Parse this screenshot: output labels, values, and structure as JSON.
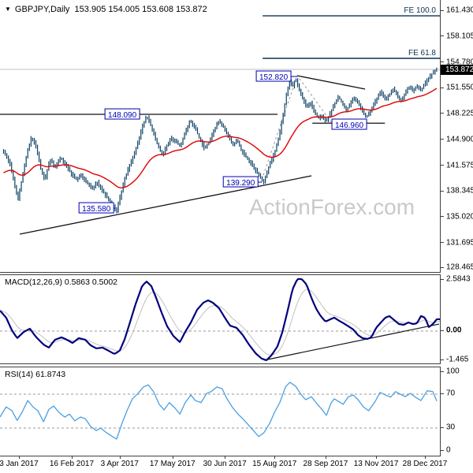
{
  "title": {
    "caret": "▼",
    "symbol_period": "GBPJPY,Daily",
    "ohlc_text": "153.905 154.005 153.608 153.872"
  },
  "watermark": "ActionForex.com",
  "colors": {
    "bar": "#0b3f63",
    "ma": "#e00000",
    "macd_line": "#00007f",
    "signal_line": "#c0c0c0",
    "rsi_line": "#4a9fe3",
    "level_box": "#0000b0",
    "fe_text": "#0f3050",
    "trendline": "#111111",
    "dashed": "#999999",
    "price_line": "#c0c0c0",
    "tag_bg": "#000000",
    "tag_text": "#ffffff",
    "axis_text": "#000000",
    "watermark": "#c9c9cb"
  },
  "chart_data": [
    {
      "id": "price",
      "type": "bar",
      "title": "GBPJPY,Daily",
      "current_ohlc": {
        "open": 153.905,
        "high": 154.005,
        "low": 153.608,
        "close": 153.872
      },
      "price_tag": "153.872",
      "price_tag_value": 153.872,
      "y_axis": {
        "labels": [
          "161.430",
          "158.105",
          "154.780",
          "151.550",
          "148.225",
          "144.900",
          "141.575",
          "138.345",
          "135.020",
          "131.695",
          "128.465"
        ],
        "top_value": 161.43,
        "bottom_value": 128.465
      },
      "x_axis": {
        "labels": [
          "3 Jan 2017",
          "16 Feb 2017",
          "3 Apr 2017",
          "17 May 2017",
          "30 Jun 2017",
          "15 Aug 2017",
          "28 Sep 2017",
          "13 Nov 2017",
          "28 Dec 2017"
        ],
        "positions": [
          0.043,
          0.163,
          0.272,
          0.392,
          0.511,
          0.624,
          0.74,
          0.855,
          0.966
        ]
      },
      "price_keypoints": [
        [
          0.009,
          143.39
        ],
        [
          0.022,
          141.88
        ],
        [
          0.032,
          139.36
        ],
        [
          0.041,
          137.34
        ],
        [
          0.05,
          139.86
        ],
        [
          0.061,
          143.08
        ],
        [
          0.072,
          145.3
        ],
        [
          0.082,
          143.99
        ],
        [
          0.093,
          141.07
        ],
        [
          0.102,
          139.76
        ],
        [
          0.113,
          142.38
        ],
        [
          0.125,
          141.37
        ],
        [
          0.138,
          142.58
        ],
        [
          0.151,
          141.57
        ],
        [
          0.161,
          140.56
        ],
        [
          0.174,
          139.76
        ],
        [
          0.185,
          140.36
        ],
        [
          0.197,
          139.35
        ],
        [
          0.21,
          138.55
        ],
        [
          0.22,
          139.56
        ],
        [
          0.233,
          138.25
        ],
        [
          0.246,
          137.34
        ],
        [
          0.256,
          136.53
        ],
        [
          0.265,
          135.7
        ],
        [
          0.274,
          137.84
        ],
        [
          0.283,
          139.76
        ],
        [
          0.294,
          141.57
        ],
        [
          0.305,
          142.98
        ],
        [
          0.315,
          144.79
        ],
        [
          0.324,
          146.61
        ],
        [
          0.333,
          147.95
        ],
        [
          0.342,
          146.81
        ],
        [
          0.351,
          145.4
        ],
        [
          0.36,
          143.99
        ],
        [
          0.369,
          142.88
        ],
        [
          0.378,
          143.99
        ],
        [
          0.389,
          145.1
        ],
        [
          0.4,
          144.59
        ],
        [
          0.41,
          143.99
        ],
        [
          0.421,
          145.8
        ],
        [
          0.432,
          147.32
        ],
        [
          0.443,
          146.41
        ],
        [
          0.453,
          145.1
        ],
        [
          0.464,
          143.79
        ],
        [
          0.475,
          144.49
        ],
        [
          0.486,
          146.01
        ],
        [
          0.496,
          147.22
        ],
        [
          0.507,
          146.61
        ],
        [
          0.518,
          145.4
        ],
        [
          0.529,
          144.19
        ],
        [
          0.539,
          144.79
        ],
        [
          0.55,
          143.38
        ],
        [
          0.561,
          142.58
        ],
        [
          0.572,
          141.77
        ],
        [
          0.582,
          140.86
        ],
        [
          0.593,
          139.96
        ],
        [
          0.6,
          139.5
        ],
        [
          0.609,
          141.07
        ],
        [
          0.618,
          142.38
        ],
        [
          0.627,
          143.79
        ],
        [
          0.636,
          145.8
        ],
        [
          0.643,
          147.82
        ],
        [
          0.651,
          150.64
        ],
        [
          0.658,
          152.36
        ],
        [
          0.665,
          151.65
        ],
        [
          0.672,
          152.7
        ],
        [
          0.679,
          151.45
        ],
        [
          0.688,
          150.24
        ],
        [
          0.697,
          149.03
        ],
        [
          0.706,
          149.63
        ],
        [
          0.715,
          148.42
        ],
        [
          0.724,
          147.62
        ],
        [
          0.733,
          147.92
        ],
        [
          0.742,
          147.2
        ],
        [
          0.751,
          148.32
        ],
        [
          0.76,
          149.43
        ],
        [
          0.769,
          150.34
        ],
        [
          0.778,
          149.63
        ],
        [
          0.787,
          148.62
        ],
        [
          0.796,
          149.43
        ],
        [
          0.805,
          150.24
        ],
        [
          0.814,
          149.53
        ],
        [
          0.823,
          148.62
        ],
        [
          0.832,
          147.72
        ],
        [
          0.841,
          148.32
        ],
        [
          0.85,
          149.43
        ],
        [
          0.858,
          150.34
        ],
        [
          0.867,
          151.05
        ],
        [
          0.876,
          150.04
        ],
        [
          0.885,
          150.64
        ],
        [
          0.894,
          151.35
        ],
        [
          0.903,
          150.54
        ],
        [
          0.912,
          149.83
        ],
        [
          0.921,
          150.84
        ],
        [
          0.93,
          151.65
        ],
        [
          0.939,
          151.05
        ],
        [
          0.948,
          151.75
        ],
        [
          0.957,
          151.15
        ],
        [
          0.966,
          152.06
        ],
        [
          0.975,
          152.76
        ],
        [
          0.984,
          153.47
        ],
        [
          0.991,
          153.87
        ]
      ],
      "levels": [
        {
          "label": "152.820",
          "t": 0.622,
          "price": 152.96,
          "tail_t": 0.676
        },
        {
          "label": "148.090",
          "t": 0.278,
          "price": 148.12
        },
        {
          "label": "146.960",
          "t": 0.794,
          "price": 146.81
        },
        {
          "label": "139.290",
          "t": 0.547,
          "price": 139.45,
          "tail_t": 0.595
        },
        {
          "label": "135.580",
          "t": 0.219,
          "price": 136.12,
          "tail_t": 0.262
        }
      ],
      "horizontal_lines": [
        {
          "price": 148.12,
          "t1": 0.0,
          "t2": 0.631
        },
        {
          "price": 146.99,
          "t1": 0.71,
          "t2": 0.875
        }
      ],
      "fe_levels": [
        {
          "label": "FE 100.0",
          "price": 160.72,
          "start_t": 0.597
        },
        {
          "label": "FE 61.8",
          "price": 155.28,
          "start_t": 0.597
        }
      ],
      "trendlines": [
        {
          "t1": 0.045,
          "p1": 132.8,
          "t2": 0.708,
          "p2": 140.26
        },
        {
          "t1": 0.676,
          "p1": 153.06,
          "t2": 0.83,
          "p2": 151.35
        }
      ],
      "dashed_path": [
        [
          0.595,
          139.76
        ],
        [
          0.676,
          153.06
        ],
        [
          0.753,
          147.11
        ]
      ]
    },
    {
      "id": "macd",
      "type": "line",
      "label": "MACD(12,26,9)",
      "values_text": "0.5863 0.5002",
      "main_value": 0.5863,
      "signal_value": 0.5002,
      "y_labels": [
        "2.5843",
        "0.00",
        "-1.465"
      ],
      "zero_line_dashed": true,
      "trendline": {
        "t1": 0.6,
        "v1": -1.45,
        "t2": 0.998,
        "v2": 0.35
      },
      "keypoints": [
        [
          0.0,
          1.02
        ],
        [
          0.014,
          0.67
        ],
        [
          0.027,
          0.04
        ],
        [
          0.039,
          -0.35
        ],
        [
          0.054,
          -0.04
        ],
        [
          0.068,
          0.12
        ],
        [
          0.081,
          -0.27
        ],
        [
          0.099,
          -0.67
        ],
        [
          0.111,
          -0.82
        ],
        [
          0.125,
          -0.43
        ],
        [
          0.14,
          -0.31
        ],
        [
          0.152,
          -0.43
        ],
        [
          0.165,
          -0.59
        ],
        [
          0.179,
          -0.35
        ],
        [
          0.194,
          -0.43
        ],
        [
          0.206,
          -0.71
        ],
        [
          0.219,
          -0.86
        ],
        [
          0.233,
          -0.82
        ],
        [
          0.247,
          -0.98
        ],
        [
          0.26,
          -1.14
        ],
        [
          0.272,
          -0.98
        ],
        [
          0.283,
          -0.43
        ],
        [
          0.296,
          0.47
        ],
        [
          0.308,
          1.33
        ],
        [
          0.323,
          2.24
        ],
        [
          0.333,
          2.47
        ],
        [
          0.344,
          2.24
        ],
        [
          0.355,
          1.65
        ],
        [
          0.367,
          0.94
        ],
        [
          0.38,
          0.24
        ],
        [
          0.394,
          -0.24
        ],
        [
          0.409,
          -0.55
        ],
        [
          0.421,
          -0.04
        ],
        [
          0.434,
          0.43
        ],
        [
          0.448,
          1.06
        ],
        [
          0.462,
          1.41
        ],
        [
          0.473,
          1.53
        ],
        [
          0.484,
          1.41
        ],
        [
          0.498,
          1.14
        ],
        [
          0.511,
          0.67
        ],
        [
          0.523,
          0.27
        ],
        [
          0.538,
          0.16
        ],
        [
          0.552,
          -0.2
        ],
        [
          0.566,
          -0.67
        ],
        [
          0.581,
          -1.1
        ],
        [
          0.595,
          -1.37
        ],
        [
          0.606,
          -1.45
        ],
        [
          0.618,
          -1.18
        ],
        [
          0.631,
          -0.75
        ],
        [
          0.642,
          -0.04
        ],
        [
          0.654,
          1.02
        ],
        [
          0.665,
          2.08
        ],
        [
          0.676,
          2.59
        ],
        [
          0.686,
          2.59
        ],
        [
          0.697,
          2.31
        ],
        [
          0.708,
          1.65
        ],
        [
          0.719,
          1.1
        ],
        [
          0.729,
          0.75
        ],
        [
          0.74,
          0.47
        ],
        [
          0.751,
          0.59
        ],
        [
          0.76,
          0.67
        ],
        [
          0.771,
          0.51
        ],
        [
          0.781,
          0.39
        ],
        [
          0.792,
          0.24
        ],
        [
          0.803,
          0.08
        ],
        [
          0.814,
          -0.2
        ],
        [
          0.824,
          -0.35
        ],
        [
          0.835,
          -0.39
        ],
        [
          0.844,
          -0.31
        ],
        [
          0.855,
          0.16
        ],
        [
          0.866,
          0.43
        ],
        [
          0.876,
          0.67
        ],
        [
          0.885,
          0.75
        ],
        [
          0.896,
          0.55
        ],
        [
          0.907,
          0.35
        ],
        [
          0.918,
          0.31
        ],
        [
          0.928,
          0.43
        ],
        [
          0.939,
          0.35
        ],
        [
          0.948,
          0.39
        ],
        [
          0.957,
          0.75
        ],
        [
          0.966,
          0.67
        ],
        [
          0.975,
          0.2
        ],
        [
          0.984,
          0.35
        ],
        [
          0.993,
          0.59
        ]
      ]
    },
    {
      "id": "rsi",
      "type": "line",
      "label": "RSI(14)",
      "value_text": "61.8743",
      "current_value": 61.8743,
      "y_labels": [
        "100",
        "70",
        "30",
        "0"
      ],
      "dashed_levels": [
        70,
        30
      ],
      "keypoints": [
        [
          0.0,
          43
        ],
        [
          0.014,
          55
        ],
        [
          0.027,
          50.5
        ],
        [
          0.039,
          39
        ],
        [
          0.05,
          48.5
        ],
        [
          0.063,
          62.5
        ],
        [
          0.075,
          55
        ],
        [
          0.086,
          50.5
        ],
        [
          0.099,
          37.5
        ],
        [
          0.111,
          52
        ],
        [
          0.122,
          56
        ],
        [
          0.134,
          48.5
        ],
        [
          0.147,
          43
        ],
        [
          0.158,
          46.5
        ],
        [
          0.17,
          38.5
        ],
        [
          0.183,
          43
        ],
        [
          0.194,
          41
        ],
        [
          0.206,
          32
        ],
        [
          0.219,
          27
        ],
        [
          0.229,
          30
        ],
        [
          0.242,
          24.5
        ],
        [
          0.254,
          20.5
        ],
        [
          0.265,
          17
        ],
        [
          0.278,
          36.5
        ],
        [
          0.29,
          52
        ],
        [
          0.301,
          64.5
        ],
        [
          0.314,
          71
        ],
        [
          0.326,
          78.5
        ],
        [
          0.337,
          81
        ],
        [
          0.349,
          73
        ],
        [
          0.362,
          58
        ],
        [
          0.373,
          51.5
        ],
        [
          0.385,
          60
        ],
        [
          0.398,
          53.5
        ],
        [
          0.409,
          46.5
        ],
        [
          0.421,
          60
        ],
        [
          0.434,
          69
        ],
        [
          0.444,
          62.5
        ],
        [
          0.457,
          60
        ],
        [
          0.47,
          71
        ],
        [
          0.48,
          73
        ],
        [
          0.493,
          78.5
        ],
        [
          0.505,
          76.5
        ],
        [
          0.516,
          64.5
        ],
        [
          0.529,
          54
        ],
        [
          0.541,
          46.5
        ],
        [
          0.552,
          41
        ],
        [
          0.565,
          33.5
        ],
        [
          0.577,
          26.5
        ],
        [
          0.588,
          20
        ],
        [
          0.6,
          24.5
        ],
        [
          0.613,
          35.5
        ],
        [
          0.624,
          48.5
        ],
        [
          0.636,
          60
        ],
        [
          0.649,
          78.5
        ],
        [
          0.659,
          84
        ],
        [
          0.672,
          79.5
        ],
        [
          0.685,
          69
        ],
        [
          0.695,
          63.5
        ],
        [
          0.708,
          67
        ],
        [
          0.72,
          59
        ],
        [
          0.731,
          52.5
        ],
        [
          0.742,
          45
        ],
        [
          0.753,
          60
        ],
        [
          0.76,
          64.5
        ],
        [
          0.78,
          58
        ],
        [
          0.792,
          67
        ],
        [
          0.803,
          69
        ],
        [
          0.814,
          63.5
        ],
        [
          0.826,
          55
        ],
        [
          0.838,
          50.5
        ],
        [
          0.853,
          61.5
        ],
        [
          0.864,
          72
        ],
        [
          0.876,
          69
        ],
        [
          0.888,
          66.5
        ],
        [
          0.899,
          73
        ],
        [
          0.91,
          70
        ],
        [
          0.921,
          67
        ],
        [
          0.933,
          71
        ],
        [
          0.944,
          66.5
        ],
        [
          0.957,
          62.5
        ],
        [
          0.971,
          74
        ],
        [
          0.984,
          73
        ],
        [
          0.993,
          61.9
        ]
      ]
    }
  ]
}
